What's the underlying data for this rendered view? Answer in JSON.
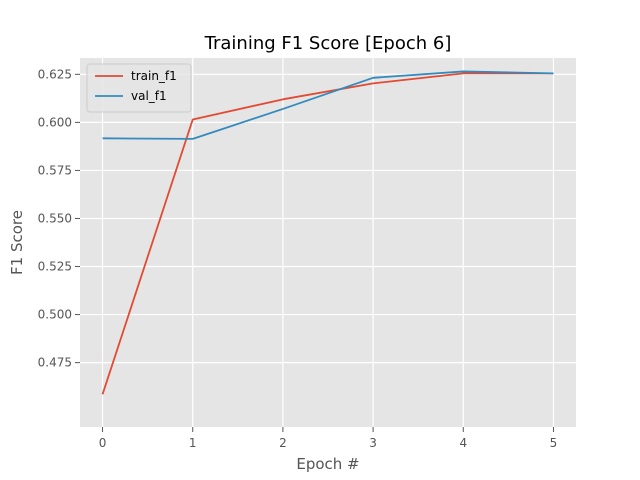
{
  "chart_data": {
    "type": "line",
    "title": "Training F1 Score [Epoch 6]",
    "xlabel": "Epoch #",
    "ylabel": "F1 Score",
    "x": [
      0,
      1,
      2,
      3,
      4,
      5
    ],
    "xlim": [
      -0.25,
      5.25
    ],
    "ylim": [
      0.4415,
      0.6335
    ],
    "xticks": [
      0,
      1,
      2,
      3,
      4,
      5
    ],
    "yticks": [
      0.475,
      0.5,
      0.525,
      0.55,
      0.575,
      0.6,
      0.625
    ],
    "ytick_labels": [
      "0.475",
      "0.500",
      "0.525",
      "0.550",
      "0.575",
      "0.600",
      "0.625"
    ],
    "grid": true,
    "legend_position": "top-left",
    "series": [
      {
        "name": "train_f1",
        "color": "#E24A33",
        "values": [
          0.4585,
          0.6015,
          0.612,
          0.6203,
          0.6255,
          0.6255
        ]
      },
      {
        "name": "val_f1",
        "color": "#348ABD",
        "values": [
          0.5917,
          0.5914,
          0.607,
          0.6232,
          0.6265,
          0.6255
        ]
      }
    ]
  }
}
